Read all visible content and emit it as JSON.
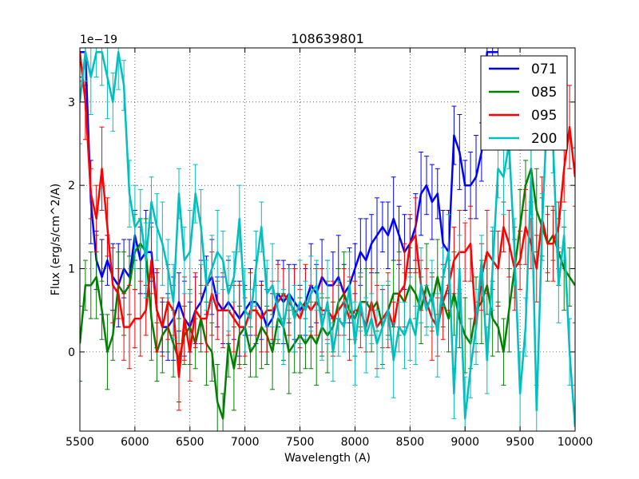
{
  "chart_data": {
    "type": "line",
    "title": "108639801",
    "xlabel": "Wavelength (A)",
    "ylabel": "Flux (erg/s/cm^2/A)",
    "offset_label": "1e−19",
    "xlim": [
      5500,
      10000
    ],
    "ylim": [
      -0.95,
      3.65
    ],
    "x_ticks": [
      5500,
      6000,
      6500,
      7000,
      7500,
      8000,
      8500,
      9000,
      9500,
      10000
    ],
    "y_ticks": [
      0,
      1,
      2,
      3
    ],
    "grid": true,
    "legend_position": "top-right",
    "series": [
      {
        "name": "071",
        "color": "#0000ff",
        "x": [
          5500,
          5550,
          5600,
          5650,
          5700,
          5750,
          5800,
          5850,
          5900,
          5950,
          6000,
          6050,
          6100,
          6150,
          6200,
          6250,
          6300,
          6350,
          6400,
          6450,
          6500,
          6550,
          6600,
          6650,
          6700,
          6750,
          6800,
          6850,
          6900,
          6950,
          7000,
          7050,
          7100,
          7150,
          7200,
          7250,
          7300,
          7350,
          7400,
          7450,
          7500,
          7550,
          7600,
          7650,
          7700,
          7750,
          7800,
          7850,
          7900,
          7950,
          8000,
          8050,
          8100,
          8150,
          8200,
          8250,
          8300,
          8350,
          8400,
          8450,
          8500,
          8550,
          8600,
          8650,
          8700,
          8750,
          8800,
          8850,
          8900,
          8950,
          9000,
          9050,
          9100,
          9150,
          9200,
          9250,
          9300
        ],
        "y": [
          3.6,
          3.6,
          1.8,
          1.1,
          0.9,
          1.1,
          0.9,
          0.8,
          1.0,
          0.9,
          1.4,
          1.1,
          1.2,
          1.2,
          0.5,
          0.3,
          0.3,
          0.4,
          0.6,
          0.4,
          0.3,
          0.5,
          0.6,
          0.8,
          0.9,
          0.6,
          0.5,
          0.6,
          0.5,
          0.4,
          0.5,
          0.6,
          0.6,
          0.5,
          0.3,
          0.4,
          0.7,
          0.6,
          0.7,
          0.6,
          0.5,
          0.6,
          0.8,
          0.7,
          0.9,
          0.8,
          0.8,
          0.9,
          0.7,
          0.8,
          1.0,
          1.2,
          1.1,
          1.3,
          1.4,
          1.5,
          1.4,
          1.6,
          1.4,
          1.2,
          1.3,
          1.5,
          1.9,
          2.0,
          1.8,
          1.9,
          1.3,
          1.2,
          2.6,
          2.4,
          2.0,
          2.0,
          2.1,
          2.4,
          3.6,
          3.6,
          3.6
        ]
      },
      {
        "name": "085",
        "color": "#008000",
        "x": [
          5500,
          5550,
          5600,
          5650,
          5700,
          5750,
          5800,
          5850,
          5900,
          5950,
          6000,
          6050,
          6100,
          6150,
          6200,
          6250,
          6300,
          6350,
          6400,
          6450,
          6500,
          6550,
          6600,
          6650,
          6700,
          6750,
          6800,
          6850,
          6900,
          6950,
          7000,
          7050,
          7100,
          7150,
          7200,
          7250,
          7300,
          7350,
          7400,
          7450,
          7500,
          7550,
          7600,
          7650,
          7700,
          7750,
          7800,
          7850,
          7900,
          7950,
          8000,
          8050,
          8100,
          8150,
          8200,
          8250,
          8300,
          8350,
          8400,
          8450,
          8500,
          8550,
          8600,
          8650,
          8700,
          8750,
          8800,
          8850,
          8900,
          8950,
          9000,
          9050,
          9100,
          9150,
          9200,
          9250,
          9300,
          9350,
          9400,
          9450,
          9500,
          9550,
          9600,
          9650,
          9700,
          9750,
          9800,
          9850,
          9900,
          9950,
          10000
        ],
        "y": [
          0.1,
          0.8,
          0.8,
          0.9,
          0.5,
          0.0,
          0.2,
          0.8,
          0.7,
          0.8,
          1.2,
          1.3,
          1.2,
          0.4,
          0.0,
          0.2,
          0.3,
          0.1,
          -0.1,
          0.2,
          0.3,
          0.1,
          0.4,
          0.1,
          0.0,
          -0.6,
          -0.8,
          0.1,
          -0.2,
          0.2,
          0.3,
          0.0,
          0.1,
          0.3,
          0.2,
          0.0,
          0.4,
          0.3,
          0.0,
          0.1,
          0.2,
          0.1,
          0.2,
          0.1,
          0.3,
          0.2,
          0.3,
          0.6,
          0.7,
          0.5,
          0.4,
          0.6,
          0.6,
          0.5,
          0.6,
          0.3,
          0.5,
          0.7,
          0.7,
          0.6,
          0.8,
          0.7,
          0.5,
          0.8,
          0.6,
          0.9,
          0.6,
          0.4,
          0.7,
          0.4,
          0.2,
          0.1,
          0.5,
          0.6,
          0.8,
          0.4,
          0.3,
          0.0,
          0.5,
          1.0,
          1.5,
          2.0,
          2.2,
          1.7,
          1.5,
          1.3,
          1.4,
          1.2,
          1.0,
          0.9,
          0.8
        ]
      },
      {
        "name": "095",
        "color": "#ff0000",
        "x": [
          5500,
          5550,
          5600,
          5650,
          5700,
          5750,
          5800,
          5850,
          5900,
          5950,
          6000,
          6050,
          6100,
          6150,
          6200,
          6250,
          6300,
          6350,
          6400,
          6450,
          6500,
          6550,
          6600,
          6650,
          6700,
          6750,
          6800,
          6850,
          6900,
          6950,
          7000,
          7050,
          7100,
          7150,
          7200,
          7250,
          7300,
          7350,
          7400,
          7450,
          7500,
          7550,
          7600,
          7650,
          7700,
          7750,
          7800,
          7850,
          7900,
          7950,
          8000,
          8050,
          8100,
          8150,
          8200,
          8250,
          8300,
          8350,
          8400,
          8450,
          8500,
          8550,
          8600,
          8650,
          8700,
          8750,
          8800,
          8850,
          8900,
          8950,
          9000,
          9050,
          9100,
          9150,
          9200,
          9250,
          9300,
          9350,
          9400,
          9450,
          9500,
          9550,
          9600,
          9650,
          9700,
          9750,
          9800,
          9850,
          9900,
          9950,
          10000
        ],
        "y": [
          3.6,
          3.0,
          1.9,
          1.6,
          2.2,
          1.5,
          0.8,
          0.7,
          0.3,
          0.3,
          0.4,
          0.4,
          0.5,
          1.1,
          0.5,
          0.3,
          0.6,
          0.5,
          -0.3,
          0.4,
          0.0,
          0.5,
          0.4,
          0.4,
          0.7,
          0.5,
          0.5,
          0.5,
          0.4,
          0.3,
          0.3,
          0.5,
          0.5,
          0.4,
          0.5,
          0.5,
          0.6,
          0.7,
          0.6,
          0.5,
          0.4,
          0.6,
          0.5,
          0.6,
          0.5,
          0.5,
          0.4,
          0.5,
          0.6,
          0.4,
          0.5,
          0.5,
          0.3,
          0.6,
          0.3,
          0.4,
          0.5,
          0.3,
          0.7,
          0.8,
          1.3,
          1.4,
          0.8,
          0.6,
          0.4,
          0.3,
          0.6,
          0.8,
          1.1,
          1.2,
          1.2,
          1.3,
          0.3,
          0.9,
          1.2,
          1.1,
          1.0,
          1.5,
          1.3,
          1.0,
          1.1,
          1.5,
          1.3,
          1.0,
          1.6,
          1.3,
          1.3,
          1.5,
          2.2,
          2.7,
          2.1
        ]
      },
      {
        "name": "200",
        "color": "#00bfbf",
        "x": [
          5500,
          5550,
          5600,
          5650,
          5700,
          5750,
          5800,
          5850,
          5900,
          5950,
          6000,
          6050,
          6100,
          6150,
          6200,
          6250,
          6300,
          6350,
          6400,
          6450,
          6500,
          6550,
          6600,
          6650,
          6700,
          6750,
          6800,
          6850,
          6900,
          6950,
          7000,
          7050,
          7100,
          7150,
          7200,
          7250,
          7300,
          7350,
          7400,
          7450,
          7500,
          7550,
          7600,
          7650,
          7700,
          7750,
          7800,
          7850,
          7900,
          7950,
          8000,
          8050,
          8100,
          8150,
          8200,
          8250,
          8300,
          8350,
          8400,
          8450,
          8500,
          8550,
          8600,
          8650,
          8700,
          8750,
          8800,
          8850,
          8900,
          8950,
          9000,
          9050,
          9100,
          9150,
          9200,
          9250,
          9300,
          9350,
          9400,
          9450,
          9500,
          9550,
          9600,
          9650,
          9700,
          9750,
          9800,
          9850,
          9900,
          9950,
          10000
        ],
        "y": [
          3.0,
          3.6,
          3.3,
          3.6,
          3.6,
          3.3,
          3.0,
          3.6,
          3.2,
          1.9,
          1.5,
          1.6,
          1.1,
          1.8,
          1.5,
          1.3,
          1.0,
          0.6,
          1.9,
          1.1,
          1.2,
          1.9,
          1.5,
          0.8,
          1.0,
          1.2,
          1.1,
          0.7,
          0.9,
          1.6,
          0.5,
          0.4,
          1.0,
          1.5,
          0.7,
          0.8,
          0.5,
          0.3,
          0.7,
          0.4,
          0.6,
          0.5,
          0.7,
          0.8,
          0.3,
          0.6,
          0.0,
          0.4,
          0.3,
          0.8,
          0.1,
          0.6,
          0.2,
          0.4,
          0.1,
          0.3,
          0.5,
          -0.1,
          0.3,
          0.2,
          0.4,
          0.2,
          0.8,
          0.5,
          0.7,
          0.2,
          0.9,
          1.2,
          -0.5,
          1.0,
          -0.8,
          -0.2,
          0.3,
          1.1,
          -0.1,
          1.0,
          2.2,
          2.1,
          2.5,
          1.2,
          -0.5,
          0.3,
          2.1,
          -0.7,
          1.5,
          3.0,
          2.5,
          0.8,
          1.4,
          0.0,
          -0.9
        ]
      }
    ]
  }
}
